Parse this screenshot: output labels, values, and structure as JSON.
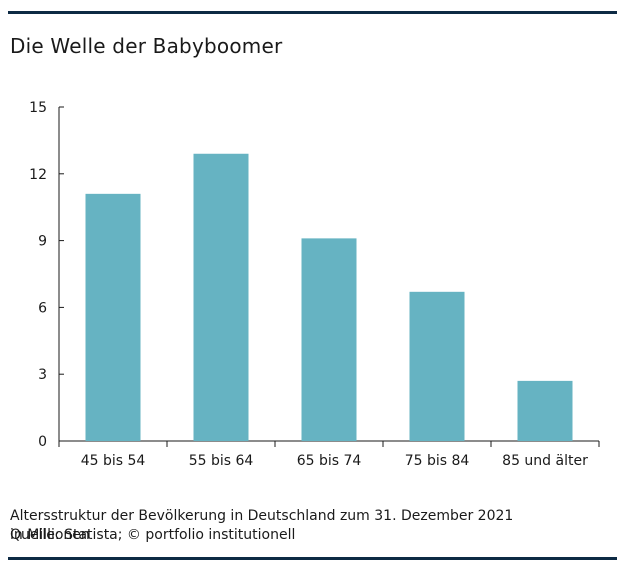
{
  "colors": {
    "rule": "#0d2a44",
    "bar": "#66b3c2",
    "axis": "#1a1a1a"
  },
  "title": "Die Welle der Babyboomer",
  "footer": {
    "description": "Altersstruktur der Bevölkerung in Deutschland zum 31. Dezember 2021",
    "unit": "in Millionen",
    "source": "Quelle: Statista; © portfolio institutionell"
  },
  "chart_data": {
    "type": "bar",
    "categories": [
      "45 bis 54",
      "55 bis 64",
      "65 bis 74",
      "75 bis 84",
      "85 und älter"
    ],
    "values": [
      11.1,
      12.9,
      9.1,
      6.7,
      2.7
    ],
    "ylim": [
      0,
      15
    ],
    "yticks": [
      0,
      3,
      6,
      9,
      12,
      15
    ],
    "grid": false,
    "legend": "none"
  }
}
